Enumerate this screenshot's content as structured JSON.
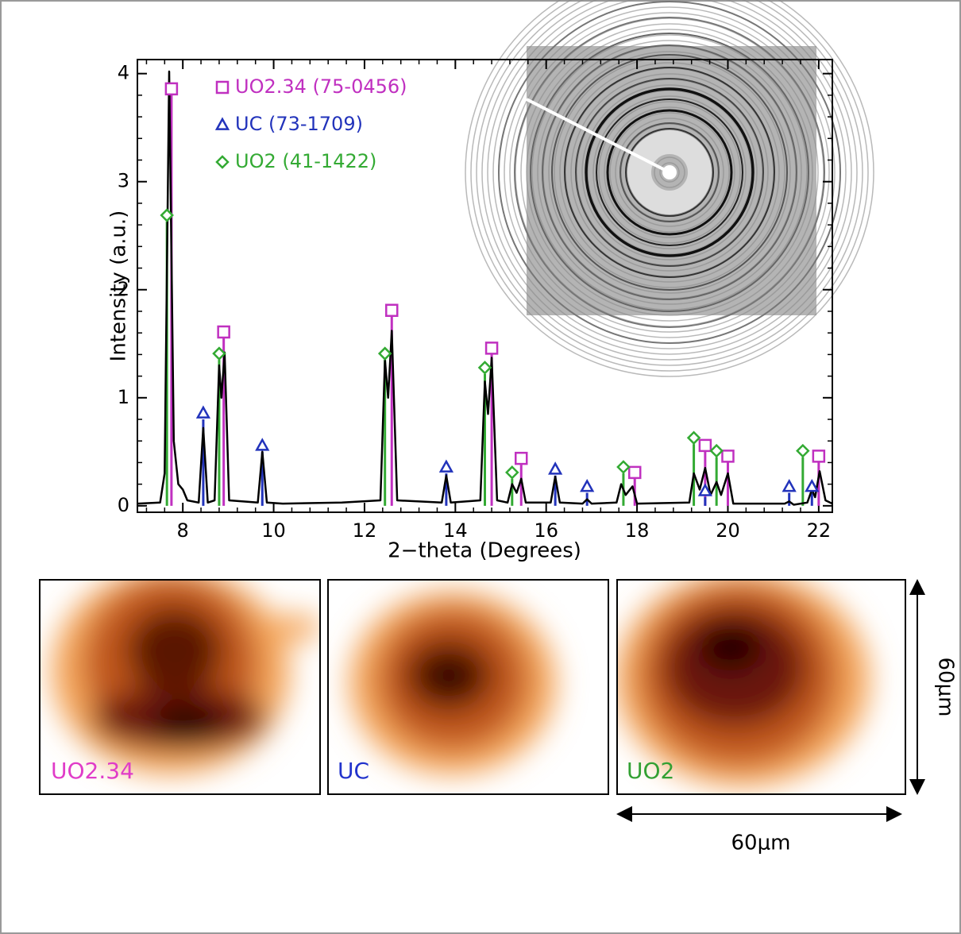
{
  "chart_data": {
    "type": "line",
    "x_label": "2−theta (Degrees)",
    "y_label": "Intensity (a.u.)",
    "color": "#000000",
    "x": [
      7.0,
      7.5,
      7.6,
      7.7,
      7.8,
      7.9,
      8.0,
      8.1,
      8.35,
      8.45,
      8.55,
      8.7,
      8.8,
      8.85,
      8.92,
      9.02,
      9.65,
      9.75,
      9.85,
      10.2,
      11.5,
      12.35,
      12.45,
      12.52,
      12.6,
      12.72,
      13.7,
      13.8,
      13.9,
      14.55,
      14.65,
      14.72,
      14.8,
      14.92,
      15.15,
      15.25,
      15.35,
      15.45,
      15.55,
      16.1,
      16.2,
      16.3,
      16.8,
      16.9,
      17.0,
      17.55,
      17.65,
      17.75,
      17.9,
      18.0,
      19.15,
      19.25,
      19.38,
      19.5,
      19.62,
      19.75,
      19.85,
      20.0,
      20.12,
      21.25,
      21.35,
      21.45,
      21.75,
      21.85,
      21.92,
      22.02,
      22.15,
      22.3
    ],
    "values": [
      0.02,
      0.03,
      0.3,
      4.02,
      0.6,
      0.2,
      0.15,
      0.05,
      0.03,
      0.72,
      0.03,
      0.05,
      1.3,
      1.0,
      1.42,
      0.05,
      0.03,
      0.5,
      0.03,
      0.02,
      0.03,
      0.05,
      1.35,
      1.0,
      1.62,
      0.05,
      0.03,
      0.28,
      0.03,
      0.05,
      1.15,
      0.85,
      1.37,
      0.05,
      0.03,
      0.2,
      0.12,
      0.25,
      0.03,
      0.03,
      0.27,
      0.03,
      0.02,
      0.06,
      0.02,
      0.03,
      0.2,
      0.1,
      0.18,
      0.02,
      0.03,
      0.3,
      0.15,
      0.35,
      0.1,
      0.22,
      0.1,
      0.3,
      0.02,
      0.02,
      0.04,
      0.01,
      0.03,
      0.15,
      0.08,
      0.32,
      0.05,
      0.02
    ],
    "series": [
      {
        "name": "UO2.34 (75-0456)",
        "color": "#c030c0",
        "marker": "square",
        "x": [
          7.75,
          8.9,
          12.6,
          14.8,
          15.45,
          17.95,
          19.5,
          20.0,
          22.0
        ],
        "values": [
          3.8,
          1.55,
          1.75,
          1.4,
          0.38,
          0.25,
          0.5,
          0.4,
          0.4
        ]
      },
      {
        "name": "UC (73-1709)",
        "color": "#2233bb",
        "marker": "triangle",
        "x": [
          8.45,
          9.75,
          13.8,
          16.2,
          16.9,
          19.5,
          21.35,
          21.85
        ],
        "values": [
          0.8,
          0.5,
          0.3,
          0.28,
          0.12,
          0.08,
          0.12,
          0.12
        ]
      },
      {
        "name": "UO2 (41-1422)",
        "color": "#33aa33",
        "marker": "diamond",
        "x": [
          7.65,
          8.8,
          12.45,
          14.65,
          15.25,
          17.7,
          19.25,
          19.75,
          21.65
        ],
        "values": [
          2.63,
          1.35,
          1.35,
          1.22,
          0.25,
          0.3,
          0.57,
          0.45,
          0.45
        ]
      }
    ],
    "xlim": [
      7.0,
      22.3
    ],
    "ylim": [
      -0.06,
      4.13
    ],
    "xticks": [
      8,
      10,
      12,
      14,
      16,
      18,
      20,
      22
    ],
    "yticks": [
      0,
      1,
      2,
      3,
      4
    ],
    "legend": "upper left",
    "maps": [
      {
        "label": "UO2.34",
        "color": "#e03cc8"
      },
      {
        "label": "UC",
        "color": "#2233cc"
      },
      {
        "label": "UO2",
        "color": "#33a033"
      }
    ],
    "scale": {
      "vertical": "60μm",
      "horizontal": "60μm"
    }
  }
}
